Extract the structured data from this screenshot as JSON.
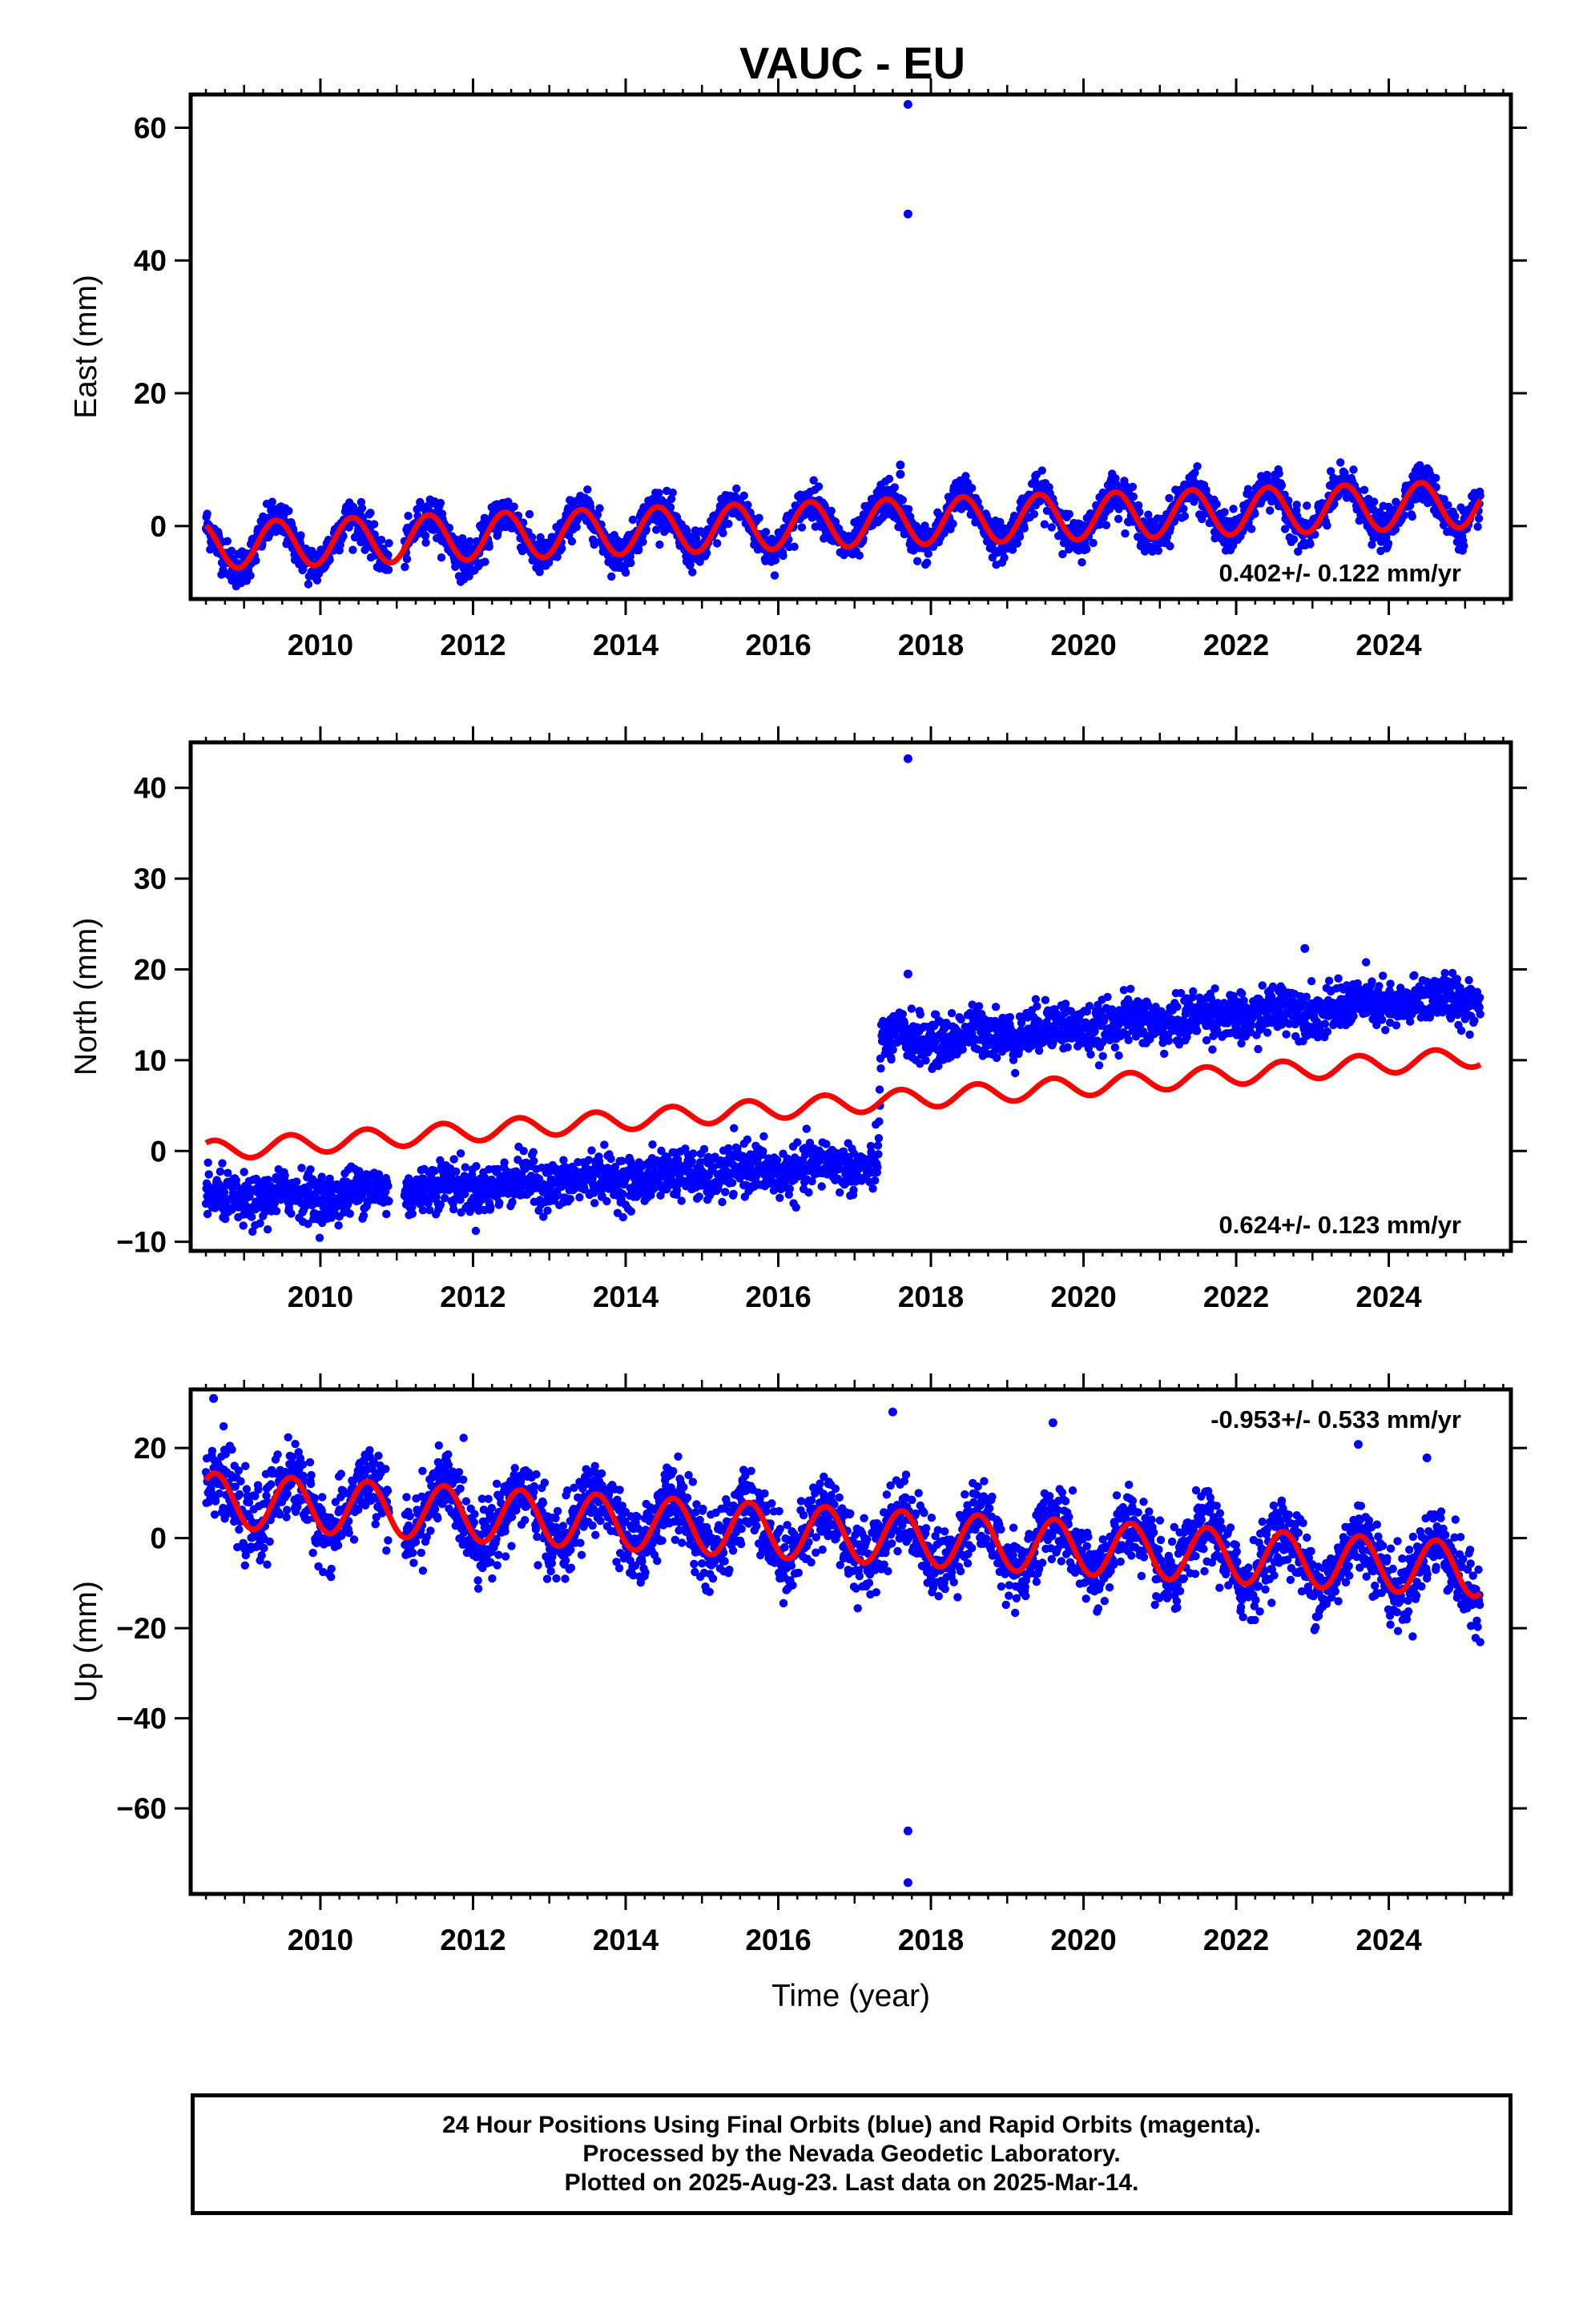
{
  "title": "VAUC - EU",
  "footer": {
    "line1": "24 Hour Positions Using Final Orbits (blue) and Rapid Orbits (magenta).",
    "line2": "Processed by the Nevada Geodetic Laboratory.",
    "line3": "Plotted on 2025-Aug-23. Last data on 2025-Mar-14."
  },
  "colors": {
    "data": "#0000ff",
    "model": "#ff0000",
    "frame": "#000000"
  },
  "chart_data": [
    {
      "type": "scatter",
      "component": "East",
      "ylabel": "East (mm)",
      "xlabel": "",
      "xlim": [
        2008.3,
        2025.6
      ],
      "ylim": [
        -11,
        65
      ],
      "xticks": [
        "2010",
        "2012",
        "2014",
        "2016",
        "2018",
        "2020",
        "2022",
        "2024"
      ],
      "yticks": [
        "0",
        "20",
        "40",
        "60"
      ],
      "rate_text": "0.402+/- 0.122 mm/yr",
      "rate_position": "bottom-right",
      "data_range": [
        2008.5,
        2025.2
      ],
      "gaps": [
        [
          2010.9,
          2011.1
        ]
      ],
      "model": {
        "velocity": 0.402,
        "offset_at_2008_5": -3.0,
        "annual_amplitude": 3.5,
        "annual_peak": 0.42,
        "trend_segments": [
          [
            2008.5,
            -3.0
          ],
          [
            2017.3,
            0.5
          ],
          [
            2025.2,
            3.3
          ]
        ]
      },
      "noise": 1.4,
      "outliers": [
        [
          2017.7,
          63.5
        ],
        [
          2017.7,
          47.0
        ],
        [
          2017.6,
          9.2
        ],
        [
          2017.6,
          7.8
        ]
      ]
    },
    {
      "type": "scatter",
      "component": "North",
      "ylabel": "North (mm)",
      "xlabel": "",
      "xlim": [
        2008.3,
        2025.6
      ],
      "ylim": [
        -11,
        45
      ],
      "xticks": [
        "2010",
        "2012",
        "2014",
        "2016",
        "2018",
        "2020",
        "2022",
        "2024"
      ],
      "yticks": [
        "-10",
        "0",
        "10",
        "20",
        "30",
        "40"
      ],
      "rate_text": "0.624+/- 0.123 mm/yr",
      "rate_position": "bottom-right",
      "data_range": [
        2008.5,
        2025.2
      ],
      "gaps": [
        [
          2010.9,
          2011.1
        ]
      ],
      "observed_trend": [
        [
          2008.5,
          -5.5
        ],
        [
          2017.3,
          -1.5
        ],
        [
          2017.35,
          12.0
        ],
        [
          2025.2,
          17.0
        ]
      ],
      "model": {
        "velocity": 0.624,
        "offset_at_2008_5": 0.0,
        "annual_amplitude": 1.1,
        "annual_peak": 0.6,
        "trend_segments": [
          [
            2008.5,
            0.0
          ],
          [
            2025.2,
            10.4
          ]
        ]
      },
      "noise": 1.3,
      "outliers": [
        [
          2017.7,
          43.2
        ],
        [
          2017.7,
          19.5
        ],
        [
          2022.9,
          22.3
        ]
      ]
    },
    {
      "type": "scatter",
      "component": "Up",
      "ylabel": "Up (mm)",
      "xlabel": "Time (year)",
      "xlim": [
        2008.3,
        2025.6
      ],
      "ylim": [
        -79,
        33
      ],
      "xticks": [
        "2010",
        "2012",
        "2014",
        "2016",
        "2018",
        "2020",
        "2022",
        "2024"
      ],
      "yticks": [
        "-60",
        "-40",
        "-20",
        "0",
        "20"
      ],
      "rate_text": "-0.953+/- 0.533 mm/yr",
      "rate_position": "top-right",
      "data_range": [
        2008.5,
        2025.2
      ],
      "gaps": [
        [
          2010.9,
          2011.1
        ]
      ],
      "model": {
        "velocity": -0.953,
        "offset_at_2008_5": 8.5,
        "annual_amplitude": 6.0,
        "annual_peak": 0.62,
        "trend_segments": [
          [
            2008.5,
            8.5
          ],
          [
            2025.2,
            -7.0
          ]
        ]
      },
      "noise": 4.0,
      "outliers": [
        [
          2017.7,
          -65.0
        ],
        [
          2017.7,
          -76.5
        ],
        [
          2008.6,
          31.0
        ],
        [
          2017.5,
          28.0
        ],
        [
          2019.6,
          25.6
        ],
        [
          2023.6,
          20.8
        ],
        [
          2024.5,
          17.8
        ]
      ]
    }
  ]
}
